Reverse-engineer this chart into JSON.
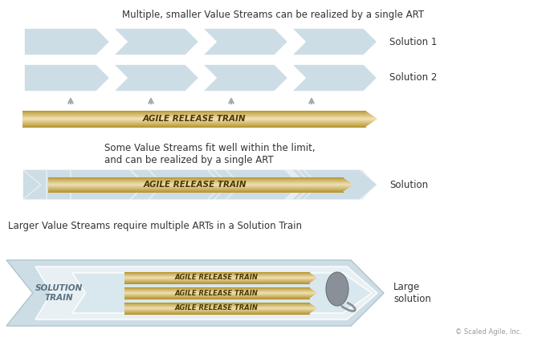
{
  "bg_color": "#ffffff",
  "light_blue": "#cddde6",
  "gold_dark": "#b8962e",
  "gold_mid": "#d4b45a",
  "gold_light": "#f0e0a0",
  "gray_arrow": "#a0aab0",
  "text_dark": "#333333",
  "text_gray": "#999999",
  "title1": "Multiple, smaller Value Streams can be realized by a single ART",
  "title2": "Some Value Streams fit well within the limit,\nand can be realized by a single ART",
  "title3": "Larger Value Streams require multiple ARTs in a Solution Train",
  "art_label": "AGILE RELEASE TRAIN",
  "sol_train_label": "SOLUTION\nTRAIN",
  "solution1_label": "Solution 1",
  "solution2_label": "Solution 2",
  "solution_label": "Solution",
  "large_solution_label": "Large\nsolution",
  "copyright": "© Scaled Agile, Inc."
}
